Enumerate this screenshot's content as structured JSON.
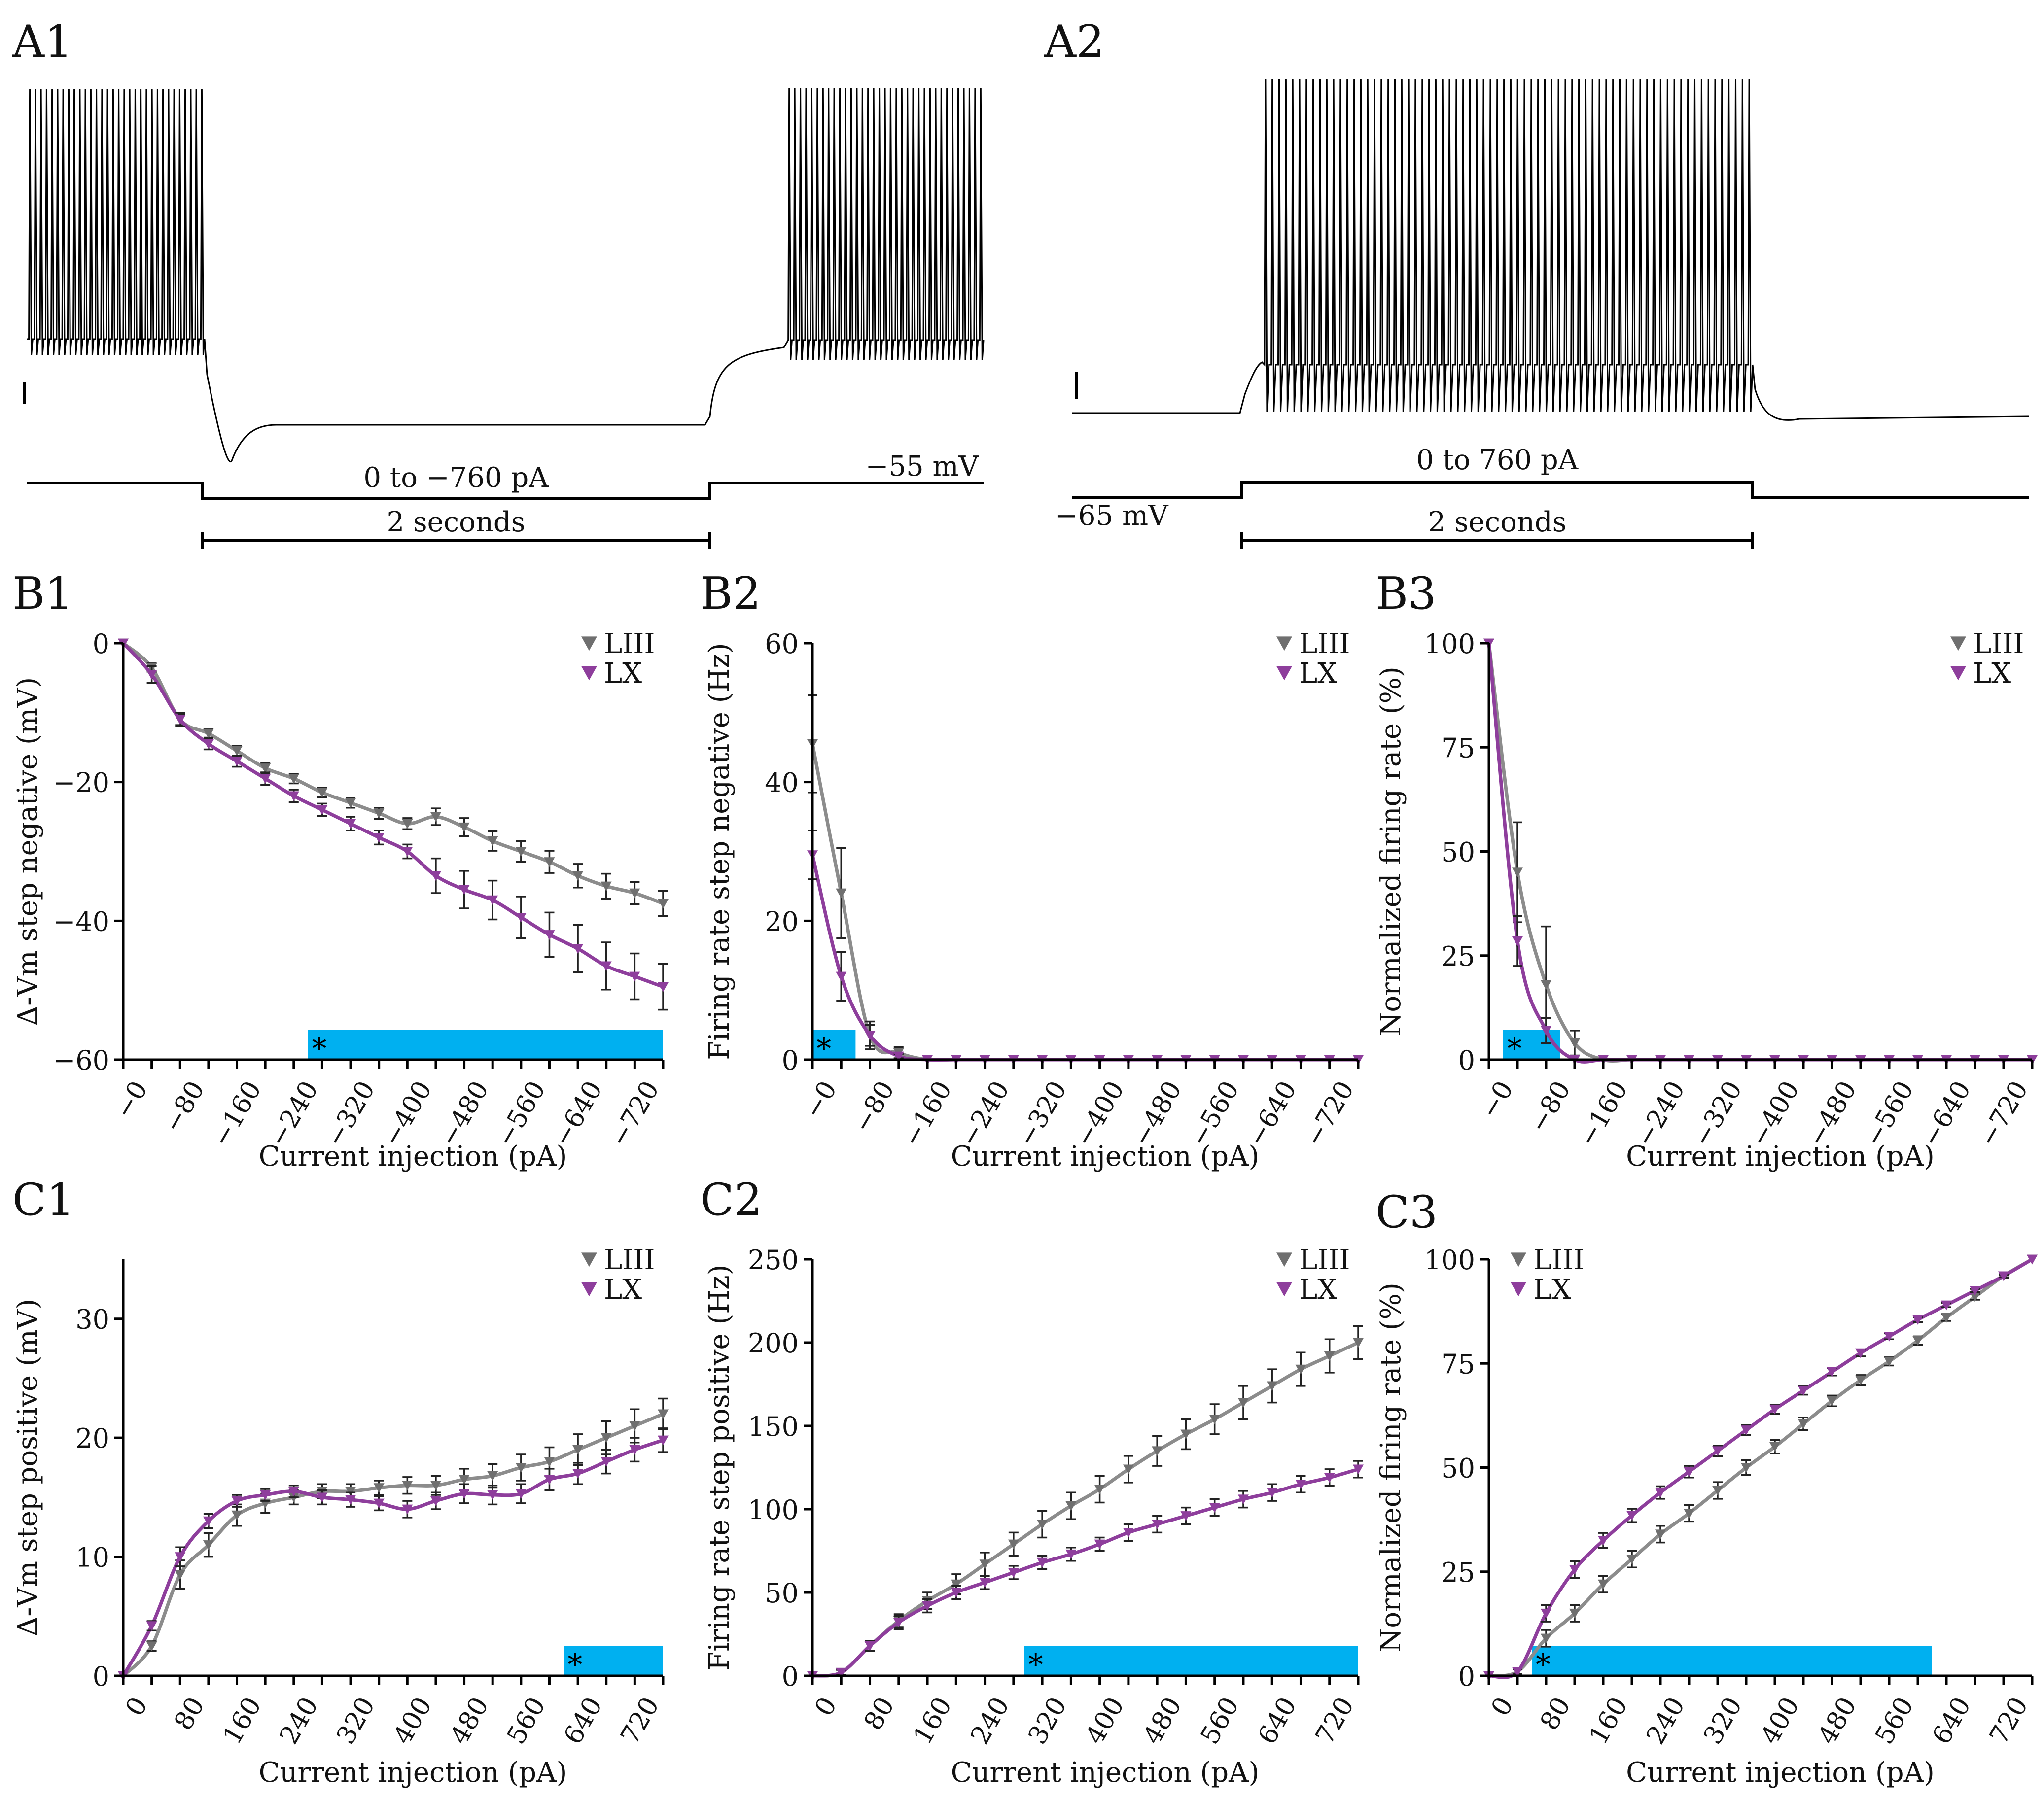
{
  "colors": {
    "LIII": "#8c8c8c",
    "LIII_marker": "#6f6f6f",
    "LX": "#8e3e9c",
    "sig": "#00b0f0",
    "axis": "#000000"
  },
  "legend": {
    "series1": "LIII",
    "series2": "LX"
  },
  "a1": {
    "label": "A1",
    "current_label": "0 to −760 pA",
    "duration_label": "2 seconds",
    "voltage_label": "−55 mV"
  },
  "a2": {
    "label": "A2",
    "current_label": "0 to 760 pA",
    "duration_label": "2 seconds",
    "voltage_label": "−65 mV"
  },
  "chart_data": [
    {
      "id": "B1",
      "panel_label": "B1",
      "type": "line",
      "xlabel": "Current injection (pA)",
      "ylabel": "Δ-Vm step negative (mV)",
      "x": [
        0,
        -40,
        -80,
        -120,
        -160,
        -200,
        -240,
        -280,
        -320,
        -360,
        -400,
        -440,
        -480,
        -520,
        -560,
        -600,
        -640,
        -680,
        -720,
        -760
      ],
      "xlim": [
        0,
        -760
      ],
      "xticks": [
        0,
        -80,
        -160,
        -240,
        -320,
        -400,
        -480,
        -560,
        -640,
        -720
      ],
      "xtick_labels": [
        "−0",
        "−80",
        "−160",
        "−240",
        "−320",
        "−400",
        "−480",
        "−560",
        "−640",
        "−720"
      ],
      "ylim": [
        -60,
        0
      ],
      "yticks": [
        0,
        -20,
        -40,
        -60
      ],
      "ytick_labels": [
        "0",
        "−20",
        "−40",
        "−60"
      ],
      "legend_position": "top-right",
      "series": [
        {
          "name": "LIII",
          "values": [
            0,
            -3.5,
            -11,
            -13,
            -15.5,
            -18,
            -19.5,
            -21.5,
            -23,
            -24.5,
            -26,
            -25,
            -26.5,
            -28.5,
            -30,
            -31.5,
            -33.5,
            -35,
            -36,
            -37.5
          ],
          "err": [
            0,
            0.6,
            0.8,
            0.6,
            0.7,
            0.7,
            0.7,
            0.7,
            0.7,
            0.8,
            0.8,
            1.2,
            1.3,
            1.4,
            1.5,
            1.6,
            1.7,
            1.8,
            1.6,
            1.8
          ]
        },
        {
          "name": "LX",
          "values": [
            0,
            -4.5,
            -11,
            -14.5,
            -17,
            -19.5,
            -22,
            -24,
            -26,
            -28,
            -30,
            -33.5,
            -35.5,
            -37,
            -39.5,
            -42,
            -44,
            -46.5,
            -48,
            -49.5
          ],
          "err": [
            0,
            1.2,
            1.0,
            0.8,
            0.8,
            0.9,
            0.9,
            0.9,
            1.0,
            1.0,
            1.0,
            2.5,
            2.7,
            2.8,
            3.0,
            3.2,
            3.4,
            3.4,
            3.3,
            3.3
          ]
        }
      ],
      "significance": {
        "from": -260,
        "to": -760,
        "label": "*"
      }
    },
    {
      "id": "B2",
      "panel_label": "B2",
      "type": "line",
      "xlabel": "Current injection (pA)",
      "ylabel": "Firing rate step negative (Hz)",
      "x": [
        0,
        -40,
        -80,
        -120,
        -160,
        -200,
        -240,
        -280,
        -320,
        -360,
        -400,
        -440,
        -480,
        -520,
        -560,
        -600,
        -640,
        -680,
        -720,
        -760
      ],
      "xlim": [
        0,
        -760
      ],
      "xticks": [
        0,
        -80,
        -160,
        -240,
        -320,
        -400,
        -480,
        -560,
        -640,
        -720
      ],
      "xtick_labels": [
        "−0",
        "−80",
        "−160",
        "−240",
        "−320",
        "−400",
        "−480",
        "−560",
        "−640",
        "−720"
      ],
      "ylim": [
        0,
        60
      ],
      "yticks": [
        0,
        20,
        40,
        60
      ],
      "ytick_labels": [
        "0",
        "20",
        "40",
        "60"
      ],
      "legend_position": "top-right",
      "series": [
        {
          "name": "LIII",
          "values": [
            45.5,
            24,
            3.5,
            1,
            0,
            0,
            0,
            0,
            0,
            0,
            0,
            0,
            0,
            0,
            0,
            0,
            0,
            0,
            0,
            0
          ],
          "err": [
            7,
            6.5,
            2,
            0.8,
            0,
            0,
            0,
            0,
            0,
            0,
            0,
            0,
            0,
            0,
            0,
            0,
            0,
            0,
            0,
            0
          ]
        },
        {
          "name": "LX",
          "values": [
            29.5,
            12,
            3.5,
            0.5,
            0,
            0,
            0,
            0,
            0,
            0,
            0,
            0,
            0,
            0,
            0,
            0,
            0,
            0,
            0,
            0
          ],
          "err": [
            3.5,
            3.5,
            1.5,
            0.3,
            0,
            0,
            0,
            0,
            0,
            0,
            0,
            0,
            0,
            0,
            0,
            0,
            0,
            0,
            0,
            0
          ]
        }
      ],
      "significance": {
        "from": 0,
        "to": -60,
        "label": "*"
      }
    },
    {
      "id": "B3",
      "panel_label": "B3",
      "type": "line",
      "xlabel": "Current injection (pA)",
      "ylabel": "Normalized firing rate (%)",
      "x": [
        0,
        -40,
        -80,
        -120,
        -160,
        -200,
        -240,
        -280,
        -320,
        -360,
        -400,
        -440,
        -480,
        -520,
        -560,
        -600,
        -640,
        -680,
        -720,
        -760
      ],
      "xlim": [
        0,
        -760
      ],
      "xticks": [
        0,
        -80,
        -160,
        -240,
        -320,
        -400,
        -480,
        -560,
        -640,
        -720
      ],
      "xtick_labels": [
        "−0",
        "−80",
        "−160",
        "−240",
        "−320",
        "−400",
        "−480",
        "−560",
        "−640",
        "−720"
      ],
      "ylim": [
        0,
        100
      ],
      "yticks": [
        0,
        25,
        50,
        75,
        100
      ],
      "ytick_labels": [
        "0",
        "25",
        "50",
        "75",
        "100"
      ],
      "legend_position": "top-right",
      "series": [
        {
          "name": "LIII",
          "values": [
            100,
            45,
            18,
            4,
            0,
            0,
            0,
            0,
            0,
            0,
            0,
            0,
            0,
            0,
            0,
            0,
            0,
            0,
            0,
            0
          ],
          "err": [
            0,
            12,
            14,
            3,
            0,
            0,
            0,
            0,
            0,
            0,
            0,
            0,
            0,
            0,
            0,
            0,
            0,
            0,
            0,
            0
          ]
        },
        {
          "name": "LX",
          "values": [
            100,
            28.5,
            7,
            0,
            0,
            0,
            0,
            0,
            0,
            0,
            0,
            0,
            0,
            0,
            0,
            0,
            0,
            0,
            0,
            0
          ],
          "err": [
            0,
            6,
            3,
            0,
            0,
            0,
            0,
            0,
            0,
            0,
            0,
            0,
            0,
            0,
            0,
            0,
            0,
            0,
            0,
            0
          ]
        }
      ],
      "significance": {
        "from": -20,
        "to": -100,
        "label": "*"
      }
    },
    {
      "id": "C1",
      "panel_label": "C1",
      "type": "line",
      "xlabel": "Current injection (pA)",
      "ylabel": "Δ-Vm step positive (mV)",
      "x": [
        0,
        40,
        80,
        120,
        160,
        200,
        240,
        280,
        320,
        360,
        400,
        440,
        480,
        520,
        560,
        600,
        640,
        680,
        720,
        760
      ],
      "xlim": [
        0,
        760
      ],
      "xticks": [
        0,
        80,
        160,
        240,
        320,
        400,
        480,
        560,
        640,
        720
      ],
      "xtick_labels": [
        "0",
        "80",
        "160",
        "240",
        "320",
        "400",
        "480",
        "560",
        "640",
        "720"
      ],
      "ylim": [
        0,
        35
      ],
      "yticks": [
        0,
        10,
        20,
        30
      ],
      "ytick_labels": [
        "0",
        "10",
        "20",
        "30"
      ],
      "legend_position": "top-right",
      "series": [
        {
          "name": "LIII",
          "values": [
            0,
            2.5,
            8.5,
            11,
            13.5,
            14.5,
            15,
            15.5,
            15.5,
            15.8,
            16,
            16,
            16.5,
            16.8,
            17.5,
            18,
            19,
            20,
            21,
            22
          ],
          "err": [
            0,
            0.4,
            1.2,
            1.0,
            0.9,
            0.8,
            0.6,
            0.6,
            0.6,
            0.6,
            0.7,
            0.8,
            0.9,
            1.0,
            1.1,
            1.2,
            1.3,
            1.4,
            1.4,
            1.3
          ]
        },
        {
          "name": "LX",
          "values": [
            0,
            4.2,
            10,
            13,
            14.7,
            15.2,
            15.5,
            15,
            14.8,
            14.5,
            14,
            14.7,
            15.3,
            15.2,
            15.3,
            16.5,
            17,
            18,
            19,
            19.8
          ],
          "err": [
            0,
            0.4,
            0.8,
            0.6,
            0.5,
            0.5,
            0.5,
            0.6,
            0.6,
            0.6,
            0.7,
            0.7,
            0.8,
            0.8,
            0.8,
            0.9,
            0.9,
            1.0,
            1.0,
            1.0
          ]
        }
      ],
      "significance": {
        "from": 620,
        "to": 760,
        "label": "*"
      }
    },
    {
      "id": "C2",
      "panel_label": "C2",
      "type": "line",
      "xlabel": "Current injection (pA)",
      "ylabel": "Firing rate step positive (Hz)",
      "x": [
        0,
        40,
        80,
        120,
        160,
        200,
        240,
        280,
        320,
        360,
        400,
        440,
        480,
        520,
        560,
        600,
        640,
        680,
        720,
        760
      ],
      "xlim": [
        0,
        760
      ],
      "xticks": [
        0,
        80,
        160,
        240,
        320,
        400,
        480,
        560,
        640,
        720
      ],
      "xtick_labels": [
        "0",
        "80",
        "160",
        "240",
        "320",
        "400",
        "480",
        "560",
        "640",
        "720"
      ],
      "ylim": [
        0,
        250
      ],
      "yticks": [
        0,
        50,
        100,
        150,
        200,
        250
      ],
      "ytick_labels": [
        "0",
        "50",
        "100",
        "150",
        "200",
        "250"
      ],
      "legend_position": "top-right",
      "series": [
        {
          "name": "LIII",
          "values": [
            0,
            2,
            18,
            33,
            45,
            55,
            67,
            79,
            91,
            102,
            112,
            124,
            135,
            145,
            154,
            164,
            174,
            184,
            192,
            200
          ],
          "err": [
            0,
            2,
            3,
            4,
            5,
            6,
            7,
            7,
            8,
            8,
            8,
            8,
            9,
            9,
            9,
            10,
            10,
            10,
            10,
            10
          ]
        },
        {
          "name": "LX",
          "values": [
            0,
            2,
            18,
            32,
            42,
            50,
            56,
            62,
            68,
            73,
            79,
            86,
            91,
            96,
            101,
            106,
            110,
            115,
            119,
            124
          ],
          "err": [
            0,
            1.5,
            3,
            4,
            4,
            4,
            4,
            4,
            4,
            4,
            4,
            5,
            5,
            5,
            5,
            5,
            5,
            5,
            5,
            5
          ]
        }
      ],
      "significance": {
        "from": 295,
        "to": 760,
        "label": "*"
      }
    },
    {
      "id": "C3",
      "panel_label": "C3",
      "type": "line",
      "xlabel": "Current injection (pA)",
      "ylabel": "Normalized firing rate (%)",
      "x": [
        0,
        40,
        80,
        120,
        160,
        200,
        240,
        280,
        320,
        360,
        400,
        440,
        480,
        520,
        560,
        600,
        640,
        680,
        720,
        760
      ],
      "xlim": [
        0,
        760
      ],
      "xticks": [
        0,
        80,
        160,
        240,
        320,
        400,
        480,
        560,
        640,
        720
      ],
      "xtick_labels": [
        "0",
        "80",
        "160",
        "240",
        "320",
        "400",
        "480",
        "560",
        "640",
        "720"
      ],
      "ylim": [
        0,
        100
      ],
      "yticks": [
        0,
        25,
        50,
        75,
        100
      ],
      "ytick_labels": [
        "0",
        "25",
        "50",
        "75",
        "100"
      ],
      "legend_position": "top-left",
      "series": [
        {
          "name": "LIII",
          "values": [
            0,
            1,
            9,
            15,
            22,
            28,
            34,
            39,
            44.5,
            50,
            55,
            60.5,
            66,
            71,
            75.5,
            80.5,
            86,
            91,
            96,
            100
          ],
          "err": [
            0,
            0.6,
            2,
            2,
            2,
            2,
            2,
            2,
            2,
            1.8,
            1.6,
            1.5,
            1.3,
            1.2,
            1.0,
            1.0,
            0.8,
            0.7,
            0.5,
            0
          ]
        },
        {
          "name": "LX",
          "values": [
            0,
            1,
            15,
            25.5,
            32.5,
            38.5,
            44,
            49,
            54,
            59,
            64,
            68.5,
            73,
            77.5,
            81.5,
            85.5,
            89,
            92.5,
            96,
            100
          ],
          "err": [
            0,
            0.6,
            2,
            2,
            1.8,
            1.6,
            1.5,
            1.4,
            1.3,
            1.2,
            1.1,
            1.0,
            0.9,
            0.8,
            0.7,
            0.6,
            0.5,
            0.4,
            0.3,
            0
          ]
        }
      ],
      "significance": {
        "from": 60,
        "to": 620,
        "label": "*"
      }
    }
  ]
}
